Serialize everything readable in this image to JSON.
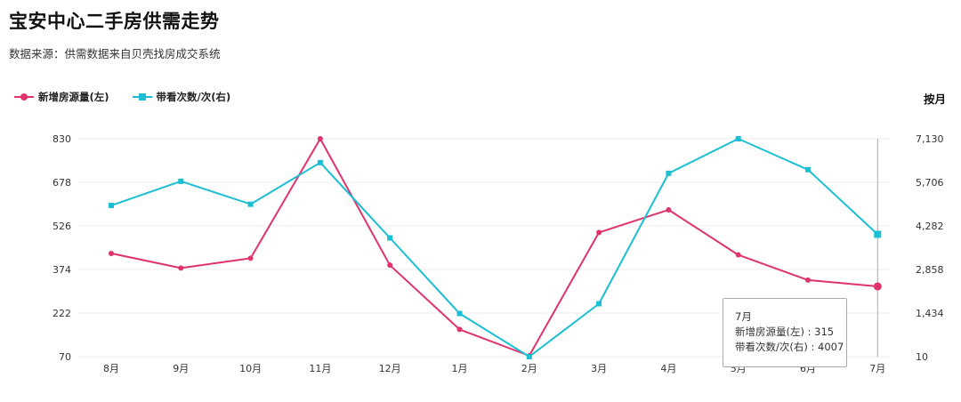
{
  "header": {
    "title": "宝安中心二手房供需走势",
    "subtitle": "数据来源：供需数据来自贝壳找房成交系统"
  },
  "legend": {
    "left_label": "新增房源量(左)",
    "right_label": "带看次数/次(右)"
  },
  "period_label": "按月",
  "colors": {
    "supply": "#e0336e",
    "demand": "#1bbfd3",
    "grid": "#ececec",
    "cursor": "#aaaaaa"
  },
  "chart_data": {
    "type": "line",
    "categories": [
      "8月",
      "9月",
      "10月",
      "11月",
      "12月",
      "1月",
      "2月",
      "3月",
      "4月",
      "5月",
      "6月",
      "7月"
    ],
    "y_left": {
      "ticks": [
        "830",
        "678",
        "526",
        "374",
        "222",
        "70"
      ],
      "min": 70,
      "max": 830
    },
    "y_right": {
      "ticks": [
        "7,130",
        "5,706",
        "4,282",
        "2,858",
        "1,434",
        "10"
      ],
      "min": 10,
      "max": 7130
    },
    "series": [
      {
        "name": "新增房源量(左)",
        "axis": "left",
        "marker": "circle",
        "values": [
          430,
          379,
          413,
          830,
          389,
          165,
          73,
          503,
          582,
          425,
          337,
          315
        ]
      },
      {
        "name": "带看次数/次(右)",
        "axis": "right",
        "marker": "square",
        "values": [
          4950,
          5740,
          4990,
          6350,
          3890,
          1420,
          10,
          1740,
          6000,
          7130,
          6120,
          4007
        ]
      }
    ],
    "grid": true,
    "legend_position": "top-left",
    "highlight_index": 11
  },
  "tooltip": {
    "title": "7月",
    "lines": [
      "新增房源量(左) : 315",
      "带看次数/次(右) : 4007"
    ]
  }
}
